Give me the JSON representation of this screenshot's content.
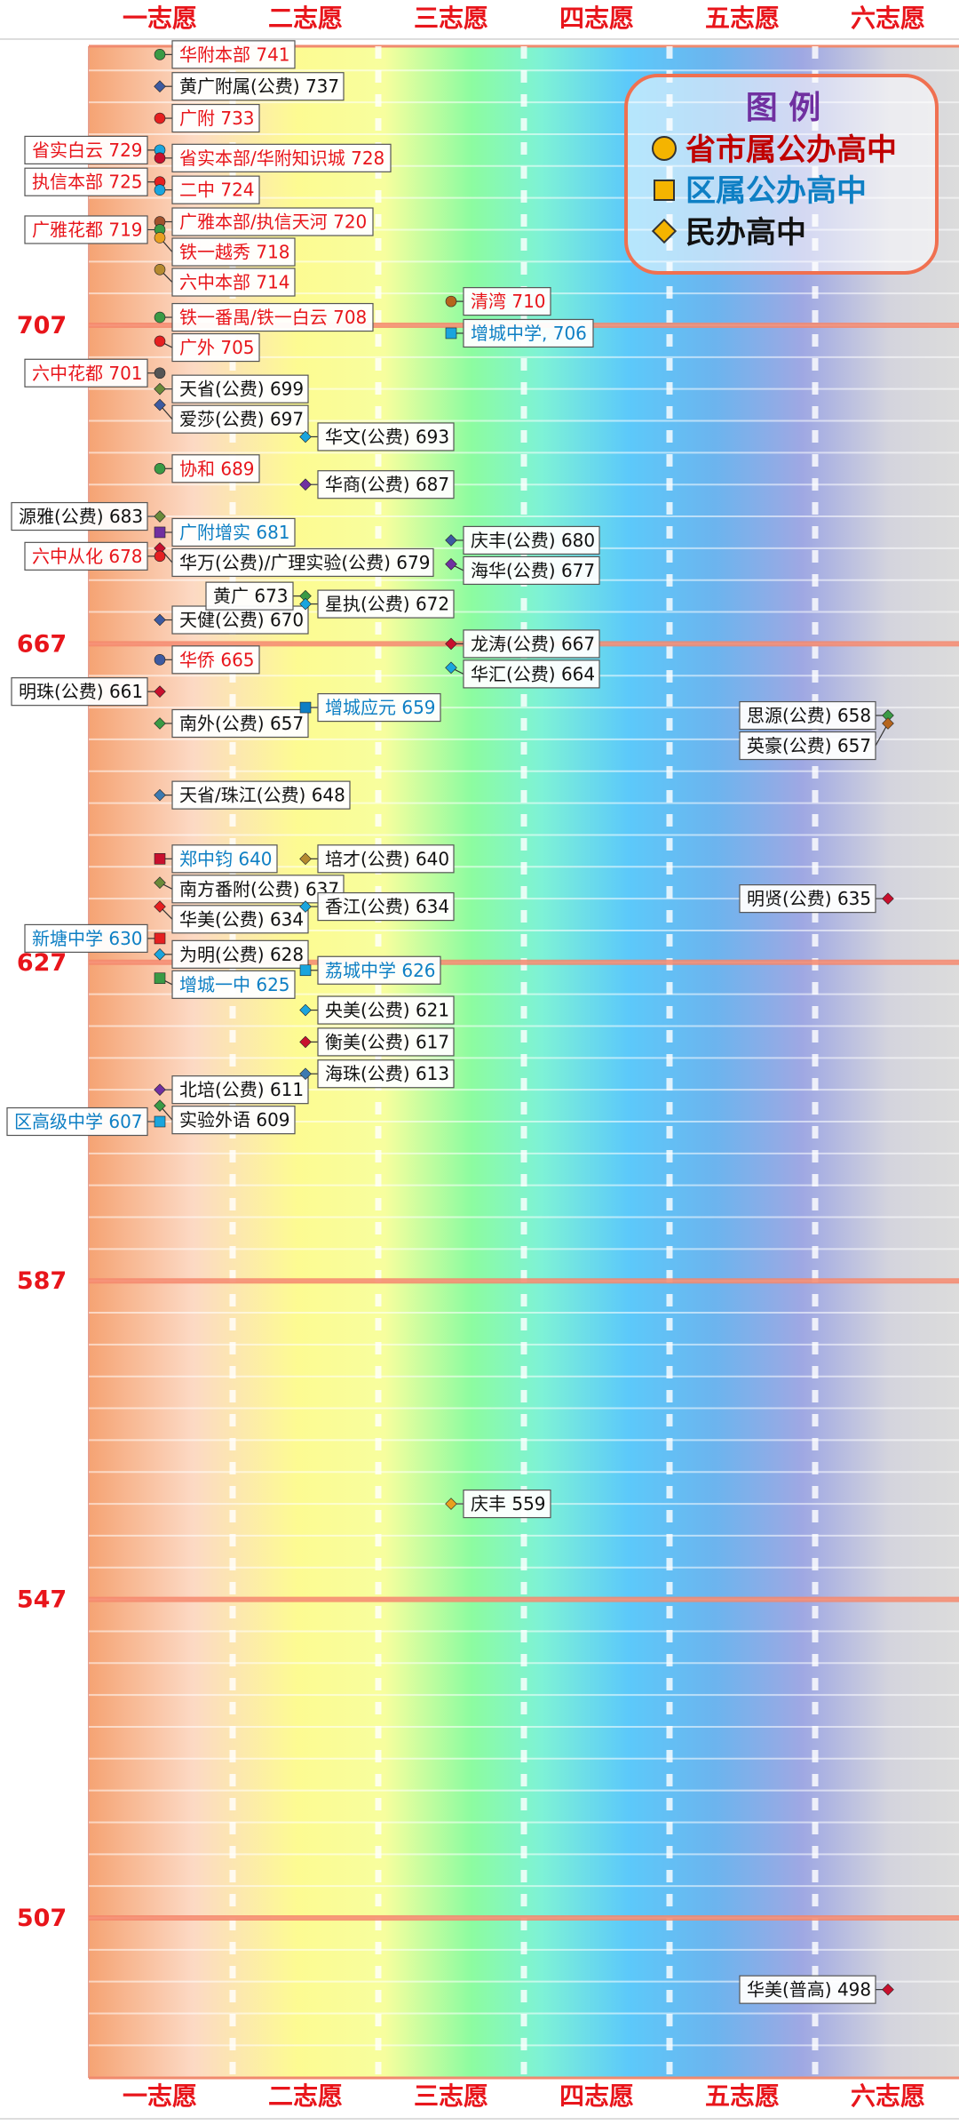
{
  "columns": [
    "一志愿",
    "二志愿",
    "三志愿",
    "四志愿",
    "五志愿",
    "六志愿"
  ],
  "colors": {
    "municipal": "#e8151b",
    "district": "#0e7fc4",
    "private": "#111111",
    "gridline_major": "#f4876c",
    "legend_border": "#f07050"
  },
  "legend": {
    "title": "图 例",
    "items": [
      {
        "label": "省市属公办高中",
        "shape": "circle",
        "icon": "gold-circle-icon",
        "text_color": "#c00000"
      },
      {
        "label": "区属公办高中",
        "shape": "square",
        "icon": "gold-square-icon",
        "text_color": "#0e7fc4"
      },
      {
        "label": "民办高中",
        "shape": "diamond",
        "icon": "gold-diamond-icon",
        "text_color": "#111111"
      }
    ]
  },
  "chart_data": {
    "type": "scatter",
    "x_categories": [
      "一志愿",
      "二志愿",
      "三志愿",
      "四志愿",
      "五志愿",
      "六志愿"
    ],
    "y_ticks": [
      707,
      667,
      627,
      587,
      547,
      507
    ],
    "ylim": [
      483,
      740
    ],
    "legend_position": "top-right",
    "points": [
      {
        "label": "华附本部 741",
        "col": 0,
        "score": 741,
        "type": "municipal",
        "color": "#3a9a45",
        "side": "right"
      },
      {
        "label": "黄广附属(公费) 737",
        "col": 0,
        "score": 737,
        "type": "private",
        "color": "#3d5aa0",
        "side": "right"
      },
      {
        "label": "广附 733",
        "col": 0,
        "score": 733,
        "type": "municipal",
        "color": "#e52020",
        "side": "right"
      },
      {
        "label": "省实白云 729",
        "col": 0,
        "score": 729,
        "type": "municipal",
        "color": "#1aa5dd",
        "side": "left"
      },
      {
        "label": "省实本部/华附知识城 728",
        "col": 0,
        "score": 728,
        "type": "municipal",
        "color": "#c8102e",
        "side": "right"
      },
      {
        "label": "执信本部 725",
        "col": 0,
        "score": 725,
        "type": "municipal",
        "color": "#e52020",
        "side": "left"
      },
      {
        "label": "二中 724",
        "col": 0,
        "score": 724,
        "type": "municipal",
        "color": "#1aa5dd",
        "side": "right"
      },
      {
        "label": "广雅本部/执信天河 720",
        "col": 0,
        "score": 720,
        "type": "municipal",
        "color": "#a0522d",
        "side": "right"
      },
      {
        "label": "广雅花都 719",
        "col": 0,
        "score": 719,
        "type": "municipal",
        "color": "#3a9a45",
        "side": "left"
      },
      {
        "label": "铁一越秀 718",
        "col": 0,
        "score": 718,
        "type": "municipal",
        "color": "#e8a020",
        "side": "right"
      },
      {
        "label": "六中本部 714",
        "col": 0,
        "score": 714,
        "type": "municipal",
        "color": "#b58a30",
        "side": "right"
      },
      {
        "label": "铁一番禺/铁一白云 708",
        "col": 0,
        "score": 708,
        "type": "municipal",
        "color": "#3a9a45",
        "side": "right"
      },
      {
        "label": "广外 705",
        "col": 0,
        "score": 705,
        "type": "municipal",
        "color": "#e52020",
        "side": "right"
      },
      {
        "label": "六中花都 701",
        "col": 0,
        "score": 701,
        "type": "municipal",
        "color": "#555555",
        "side": "left"
      },
      {
        "label": "天省(公费) 699",
        "col": 0,
        "score": 699,
        "type": "private",
        "color": "#6a8a3a",
        "side": "right"
      },
      {
        "label": "爱莎(公费) 697",
        "col": 0,
        "score": 697,
        "type": "private",
        "color": "#3d5aa0",
        "side": "right"
      },
      {
        "label": "协和 689",
        "col": 0,
        "score": 689,
        "type": "municipal",
        "color": "#3a9a45",
        "side": "right"
      },
      {
        "label": "源雅(公费) 683",
        "col": 0,
        "score": 683,
        "type": "private",
        "color": "#6a8a3a",
        "side": "left"
      },
      {
        "label": "广附增实 681",
        "col": 0,
        "score": 681,
        "type": "district",
        "color": "#7030a0",
        "side": "right"
      },
      {
        "label": "华万(公费)/广理实验(公费) 679",
        "col": 0,
        "score": 679,
        "type": "private",
        "color": "#c8102e",
        "side": "right"
      },
      {
        "label": "六中从化 678",
        "col": 0,
        "score": 678,
        "type": "municipal",
        "color": "#e52020",
        "side": "left"
      },
      {
        "label": "天健(公费) 670",
        "col": 0,
        "score": 670,
        "type": "private",
        "color": "#3d5aa0",
        "side": "right"
      },
      {
        "label": "华侨 665",
        "col": 0,
        "score": 665,
        "type": "municipal",
        "color": "#3d5aa0",
        "side": "right"
      },
      {
        "label": "明珠(公费) 661",
        "col": 0,
        "score": 661,
        "type": "private",
        "color": "#c8102e",
        "side": "left"
      },
      {
        "label": "南外(公费) 657",
        "col": 0,
        "score": 657,
        "type": "private",
        "color": "#3a9a45",
        "side": "right"
      },
      {
        "label": "天省/珠江(公费) 648",
        "col": 0,
        "score": 648,
        "type": "private",
        "color": "#3d7ab0",
        "side": "right"
      },
      {
        "label": "郑中钧 640",
        "col": 0,
        "score": 640,
        "type": "district",
        "color": "#c8102e",
        "side": "right"
      },
      {
        "label": "南方番附(公费) 637",
        "col": 0,
        "score": 637,
        "type": "private",
        "color": "#6a8a3a",
        "side": "right"
      },
      {
        "label": "华美(公费) 634",
        "col": 0,
        "score": 634,
        "type": "private",
        "color": "#e52020",
        "side": "right"
      },
      {
        "label": "新塘中学 630",
        "col": 0,
        "score": 630,
        "type": "district",
        "color": "#e52020",
        "side": "left"
      },
      {
        "label": "为明(公费) 628",
        "col": 0,
        "score": 628,
        "type": "private",
        "color": "#1aa5dd",
        "side": "right"
      },
      {
        "label": "增城一中 625",
        "col": 0,
        "score": 625,
        "type": "district",
        "color": "#3a9a45",
        "side": "right"
      },
      {
        "label": "北培(公费) 611",
        "col": 0,
        "score": 611,
        "type": "private",
        "color": "#7030a0",
        "side": "right"
      },
      {
        "label": "实验外语 609",
        "col": 0,
        "score": 609,
        "type": "private",
        "color": "#3a9a45",
        "side": "right"
      },
      {
        "label": "区高级中学 607",
        "col": 0,
        "score": 607,
        "type": "district",
        "color": "#1aa5dd",
        "side": "left"
      },
      {
        "label": "华文(公费) 693",
        "col": 1,
        "score": 693,
        "type": "private",
        "color": "#1aa5dd",
        "side": "right"
      },
      {
        "label": "华商(公费) 687",
        "col": 1,
        "score": 687,
        "type": "private",
        "color": "#7030a0",
        "side": "right"
      },
      {
        "label": "黄广 673",
        "col": 1,
        "score": 673,
        "type": "private",
        "color": "#3a9a45",
        "side": "left"
      },
      {
        "label": "星执(公费) 672",
        "col": 1,
        "score": 672,
        "type": "private",
        "color": "#1aa5dd",
        "side": "right"
      },
      {
        "label": "增城应元 659",
        "col": 1,
        "score": 659,
        "type": "district",
        "color": "#0e7fc4",
        "side": "right"
      },
      {
        "label": "培才(公费) 640",
        "col": 1,
        "score": 640,
        "type": "private",
        "color": "#b58a30",
        "side": "right"
      },
      {
        "label": "香江(公费) 634",
        "col": 1,
        "score": 634,
        "type": "private",
        "color": "#1aa5dd",
        "side": "right"
      },
      {
        "label": "荔城中学 626",
        "col": 1,
        "score": 626,
        "type": "district",
        "color": "#1aa5dd",
        "side": "right"
      },
      {
        "label": "央美(公费) 621",
        "col": 1,
        "score": 621,
        "type": "private",
        "color": "#1aa5dd",
        "side": "right"
      },
      {
        "label": "衡美(公费) 617",
        "col": 1,
        "score": 617,
        "type": "private",
        "color": "#c8102e",
        "side": "right"
      },
      {
        "label": "海珠(公费) 613",
        "col": 1,
        "score": 613,
        "type": "private",
        "color": "#3d7ab0",
        "side": "right"
      },
      {
        "label": "清湾 710",
        "col": 2,
        "score": 710,
        "type": "municipal",
        "color": "#b5651d",
        "side": "right"
      },
      {
        "label": "增城中学, 706",
        "col": 2,
        "score": 706,
        "type": "district",
        "color": "#1aa5dd",
        "side": "right"
      },
      {
        "label": "庆丰(公费) 680",
        "col": 2,
        "score": 680,
        "type": "private",
        "color": "#3d5aa0",
        "side": "right"
      },
      {
        "label": "海华(公费) 677",
        "col": 2,
        "score": 677,
        "type": "private",
        "color": "#7030a0",
        "side": "right"
      },
      {
        "label": "龙涛(公费) 667",
        "col": 2,
        "score": 667,
        "type": "private",
        "color": "#c8102e",
        "side": "right"
      },
      {
        "label": "华汇(公费) 664",
        "col": 2,
        "score": 664,
        "type": "private",
        "color": "#1aa5dd",
        "side": "right"
      },
      {
        "label": "庆丰 559",
        "col": 2,
        "score": 559,
        "type": "private",
        "color": "#e8a020",
        "side": "right"
      },
      {
        "label": "思源(公费) 658",
        "col": 5,
        "score": 658,
        "type": "private",
        "color": "#3a9a45",
        "side": "left"
      },
      {
        "label": "英豪(公费) 657",
        "col": 5,
        "score": 657,
        "type": "private",
        "color": "#b5651d",
        "side": "left"
      },
      {
        "label": "明贤(公费) 635",
        "col": 5,
        "score": 635,
        "type": "private",
        "color": "#c8102e",
        "side": "left"
      },
      {
        "label": "华美(普高) 498",
        "col": 5,
        "score": 498,
        "type": "private",
        "color": "#c8102e",
        "side": "left"
      }
    ]
  }
}
